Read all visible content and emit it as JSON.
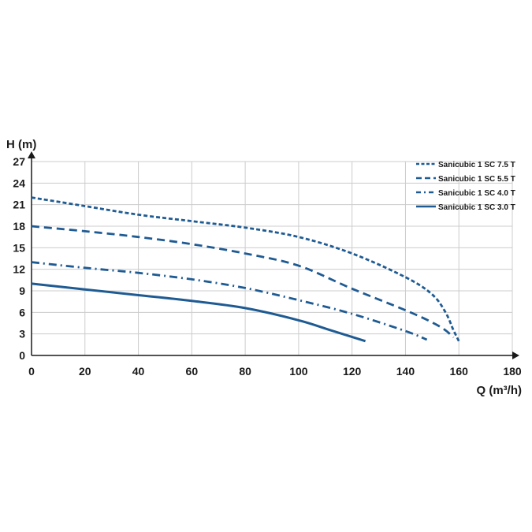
{
  "chart_data": {
    "type": "line",
    "xlabel": "Q (m³/h)",
    "ylabel": "H (m)",
    "xlim": [
      0,
      180
    ],
    "ylim": [
      0,
      27
    ],
    "xticks": [
      0,
      20,
      40,
      60,
      80,
      100,
      120,
      140,
      160,
      180
    ],
    "yticks": [
      0,
      3,
      6,
      9,
      12,
      15,
      18,
      21,
      24,
      27
    ],
    "grid": true,
    "legend_position": "top-right",
    "line_color": "#1f5b93",
    "grid_color": "#cccccc",
    "series": [
      {
        "name": "Sanicubic 1 SC 7.5 T",
        "style": "dashed",
        "x": [
          0,
          20,
          40,
          60,
          80,
          100,
          120,
          140,
          150,
          155,
          158,
          160
        ],
        "y": [
          22,
          20.8,
          19.6,
          18.7,
          17.8,
          16.5,
          14.2,
          10.9,
          8.5,
          6,
          3.5,
          2
        ]
      },
      {
        "name": "Sanicubic 1 SC 5.5 T",
        "style": "long-dashed",
        "x": [
          0,
          20,
          40,
          60,
          80,
          100,
          120,
          140,
          150,
          155,
          158
        ],
        "y": [
          18,
          17.3,
          16.5,
          15.5,
          14.2,
          12.5,
          9.3,
          6.3,
          4.6,
          3.5,
          2.5
        ]
      },
      {
        "name": "Sanicubic 1 SC 4.0 T",
        "style": "dash-dot",
        "x": [
          0,
          20,
          40,
          60,
          80,
          100,
          120,
          140,
          148
        ],
        "y": [
          13,
          12.2,
          11.5,
          10.6,
          9.4,
          7.7,
          5.8,
          3.4,
          2.2
        ]
      },
      {
        "name": "Sanicubic 1 SC 3.0 T",
        "style": "solid",
        "x": [
          0,
          20,
          40,
          60,
          80,
          100,
          112,
          125
        ],
        "y": [
          10,
          9.2,
          8.4,
          7.6,
          6.6,
          4.9,
          3.5,
          2
        ]
      }
    ]
  }
}
